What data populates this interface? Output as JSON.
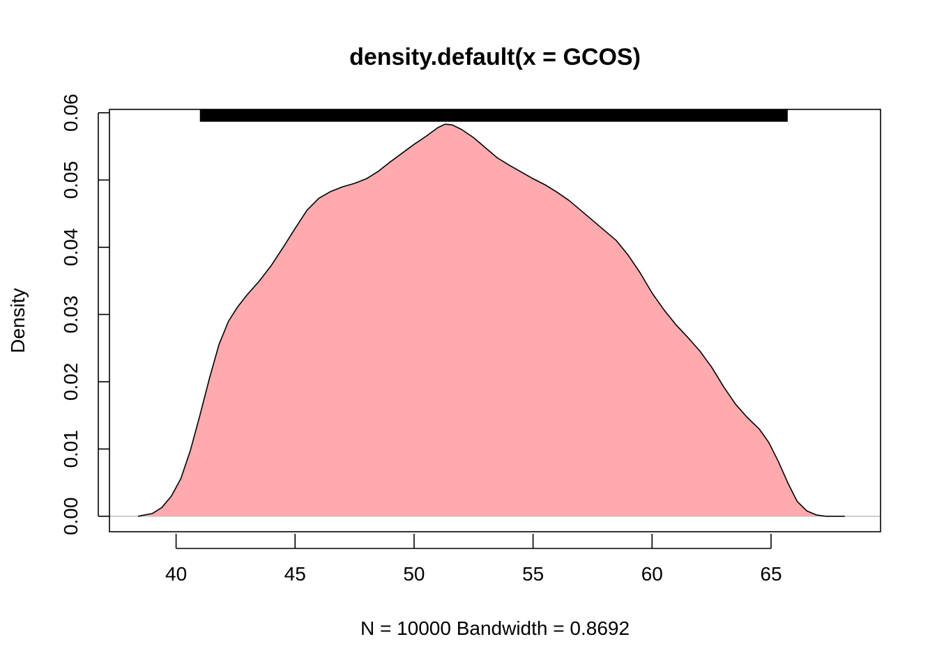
{
  "chart_data": {
    "type": "area",
    "title": "density.default(x = GCOS)",
    "xlabel": "N = 10000   Bandwidth = 0.8692",
    "ylabel": "Density",
    "xlim": [
      37.2,
      69.6
    ],
    "ylim": [
      -0.0023,
      0.0605
    ],
    "xticks": [
      40,
      45,
      50,
      55,
      60,
      65
    ],
    "xtick_labels": [
      "40",
      "45",
      "50",
      "55",
      "60",
      "65"
    ],
    "yticks": [
      0.0,
      0.01,
      0.02,
      0.03,
      0.04,
      0.05,
      0.06
    ],
    "ytick_labels": [
      "0.00",
      "0.01",
      "0.02",
      "0.03",
      "0.04",
      "0.05",
      "0.06"
    ],
    "grid": false,
    "legend": "none",
    "fill_color": "#FFAAAD",
    "line_color": "#000000",
    "baseline_color": "#BEBEBE",
    "series": [
      {
        "x": [
          38.4,
          39.0,
          39.4,
          39.8,
          40.2,
          40.6,
          41.0,
          41.4,
          41.8,
          42.2,
          42.6,
          43.0,
          43.5,
          44.0,
          44.5,
          45.0,
          45.5,
          46.0,
          46.5,
          47.0,
          47.5,
          48.0,
          48.5,
          49.0,
          49.5,
          50.0,
          50.5,
          51.0,
          51.3,
          51.6,
          52.0,
          52.5,
          53.0,
          53.5,
          54.0,
          54.5,
          55.0,
          55.5,
          56.0,
          56.5,
          57.0,
          57.5,
          58.0,
          58.5,
          59.0,
          59.5,
          60.0,
          60.5,
          61.0,
          61.5,
          62.0,
          62.5,
          63.0,
          63.5,
          64.0,
          64.5,
          64.9,
          65.3,
          65.7,
          66.1,
          66.5,
          66.9,
          67.3,
          67.7,
          68.1
        ],
        "y": [
          0.0,
          0.0004,
          0.0013,
          0.003,
          0.0056,
          0.0098,
          0.015,
          0.0205,
          0.0255,
          0.029,
          0.0312,
          0.033,
          0.035,
          0.0373,
          0.04,
          0.0428,
          0.0455,
          0.0473,
          0.0483,
          0.049,
          0.0495,
          0.0502,
          0.0513,
          0.0527,
          0.054,
          0.0553,
          0.0565,
          0.0578,
          0.0583,
          0.0582,
          0.0575,
          0.0563,
          0.0548,
          0.0533,
          0.0522,
          0.0512,
          0.0502,
          0.0493,
          0.0482,
          0.047,
          0.0455,
          0.044,
          0.0425,
          0.041,
          0.0388,
          0.0362,
          0.0332,
          0.0307,
          0.0285,
          0.0266,
          0.0246,
          0.0222,
          0.0193,
          0.0167,
          0.0147,
          0.013,
          0.011,
          0.0082,
          0.005,
          0.0022,
          0.0008,
          0.0002,
          0.0,
          0.0,
          0.0
        ]
      }
    ],
    "rug": {
      "x_from": 41.0,
      "x_to": 65.7,
      "y": 0.0596,
      "color": "#000000"
    }
  }
}
